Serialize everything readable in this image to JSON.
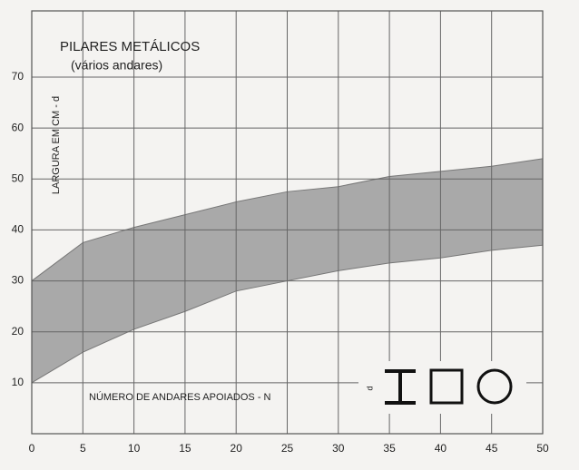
{
  "chart_data": {
    "type": "band",
    "title": "PILARES METÁLICOS",
    "subtitle": "(vários andares)",
    "y_label": "LARGURA  EM CM - d",
    "x_label": "NÚMERO DE ANDARES APOIADOS - N",
    "annotations": [
      "d"
    ],
    "x": [
      0,
      5,
      10,
      15,
      20,
      25,
      30,
      35,
      40,
      45,
      50
    ],
    "upper": [
      30,
      37.5,
      40.5,
      43,
      45.5,
      47.5,
      48.5,
      50.5,
      51.5,
      52.5,
      54
    ],
    "lower": [
      10,
      16,
      20.5,
      24,
      28,
      30,
      32,
      33.5,
      34.5,
      36,
      37
    ],
    "color": "#a9a9a9",
    "xlim": [
      0,
      50
    ],
    "xticks": [
      0,
      5,
      10,
      15,
      20,
      25,
      30,
      35,
      40,
      45,
      50
    ],
    "ylim": [
      0,
      83
    ],
    "yticks": [
      10,
      20,
      30,
      40,
      50,
      60,
      70
    ],
    "grid": true
  }
}
